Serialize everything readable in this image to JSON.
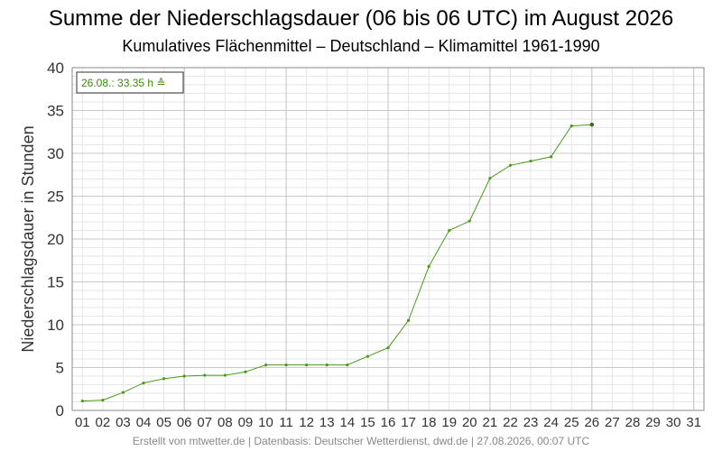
{
  "chart_data": {
    "type": "line",
    "title": "Summe der Niederschlagsdauer (06 bis 06 UTC) im August 2026",
    "subtitle": "Kumulatives Flächenmittel – Deutschland – Klimamittel 1961-1990",
    "xlabel": "",
    "ylabel": "Niederschlagsdauer in Stunden",
    "ylim": [
      0,
      40
    ],
    "yticks": [
      0,
      5,
      10,
      15,
      20,
      25,
      30,
      35,
      40
    ],
    "xticks": [
      "01",
      "02",
      "03",
      "04",
      "05",
      "06",
      "07",
      "08",
      "09",
      "10",
      "11",
      "12",
      "13",
      "14",
      "15",
      "16",
      "17",
      "18",
      "19",
      "20",
      "21",
      "22",
      "23",
      "24",
      "25",
      "26",
      "27",
      "28",
      "29",
      "30",
      "31"
    ],
    "grid": true,
    "annotation": "26.08.: 33.35 h ≙",
    "credit": "Erstellt von mtwetter.de | Datenbasis: Deutscher Wetterdienst, dwd.de | 27.08.2026, 00:07 UTC",
    "series": [
      {
        "color": "#4a9a1a",
        "x": [
          1,
          2,
          3,
          4,
          5,
          6,
          7,
          8,
          9,
          10,
          11,
          12,
          13,
          14,
          15,
          16,
          17,
          18,
          19,
          20,
          21,
          22,
          23,
          24,
          25,
          26
        ],
        "values": [
          1.1,
          1.2,
          2.1,
          3.2,
          3.7,
          4.0,
          4.1,
          4.1,
          4.5,
          5.3,
          5.3,
          5.3,
          5.3,
          5.3,
          6.3,
          7.3,
          10.5,
          16.8,
          21.0,
          22.1,
          27.1,
          28.6,
          29.1,
          29.6,
          33.2,
          33.35
        ]
      }
    ]
  }
}
